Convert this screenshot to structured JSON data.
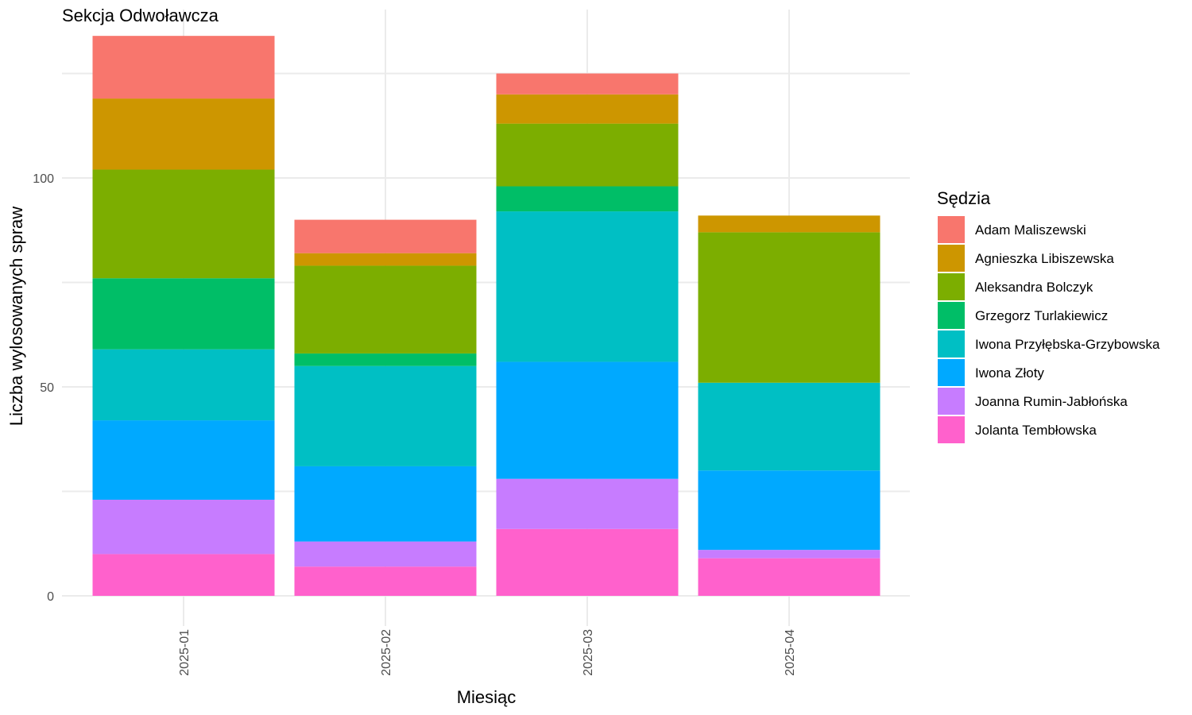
{
  "chart_data": {
    "type": "bar",
    "stacked": true,
    "title": "Sekcja Odwoławcza",
    "xlabel": "Miesiąc",
    "ylabel": "Liczba wylosowanych spraw",
    "ylim": [
      0,
      140
    ],
    "yticks": [
      0,
      50,
      100
    ],
    "grid": true,
    "legend_title": "Sędzia",
    "legend_position": "right",
    "categories": [
      "2025-01",
      "2025-02",
      "2025-03",
      "2025-04"
    ],
    "series": [
      {
        "name": "Jolanta Tembłowska",
        "color": "#FF61CC",
        "values": [
          10,
          7,
          16,
          9
        ]
      },
      {
        "name": "Joanna Rumin-Jabłońska",
        "color": "#C77CFF",
        "values": [
          13,
          6,
          12,
          2
        ]
      },
      {
        "name": "Iwona Złoty",
        "color": "#00A9FF",
        "values": [
          19,
          18,
          28,
          19
        ]
      },
      {
        "name": "Iwona Przyłębska-Grzybowska",
        "color": "#00BFC4",
        "values": [
          17,
          24,
          36,
          21
        ]
      },
      {
        "name": "Grzegorz Turlakiewicz",
        "color": "#00BE67",
        "values": [
          17,
          3,
          6,
          0
        ]
      },
      {
        "name": "Aleksandra Bolczyk",
        "color": "#7CAE00",
        "values": [
          26,
          21,
          15,
          36
        ]
      },
      {
        "name": "Agnieszka Libiszewska",
        "color": "#CD9600",
        "values": [
          17,
          3,
          7,
          4
        ]
      },
      {
        "name": "Adam Maliszewski",
        "color": "#F8766D",
        "values": [
          15,
          8,
          5,
          0
        ]
      }
    ],
    "legend_order": [
      "Adam Maliszewski",
      "Agnieszka Libiszewska",
      "Aleksandra Bolczyk",
      "Grzegorz Turlakiewicz",
      "Iwona Przyłębska-Grzybowska",
      "Iwona Złoty",
      "Joanna Rumin-Jabłońska",
      "Jolanta Tembłowska"
    ]
  }
}
